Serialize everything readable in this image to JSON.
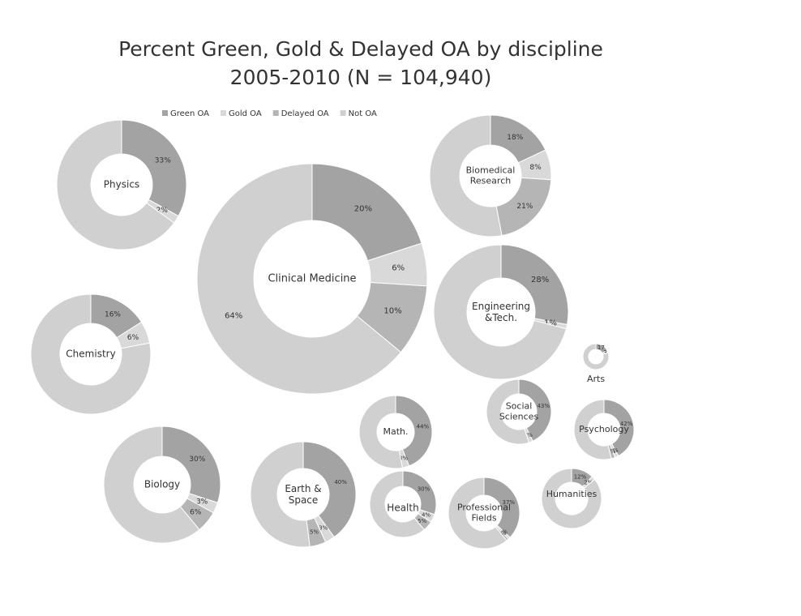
{
  "chart_data": {
    "type": "donut",
    "title": "Percent Green, Gold & Delayed OA by discipline",
    "subtitle": "2005-2010 (N = 104,940)",
    "categories": [
      "Green OA",
      "Gold OA",
      "Delayed OA",
      "Not OA"
    ],
    "colors": [
      "#a3a3a3",
      "#d9d9d9",
      "#b5b5b5",
      "#d0d0d0"
    ],
    "legend": "top",
    "charts": [
      {
        "name": "Physics",
        "values": [
          33,
          2,
          0,
          65
        ],
        "value_labels": [
          "33%",
          "2%",
          null,
          null
        ]
      },
      {
        "name": "Biomedical\nResearch",
        "values": [
          18,
          8,
          21,
          53
        ],
        "value_labels": [
          "18%",
          "8%",
          "21%",
          null
        ]
      },
      {
        "name": "Clinical Medicine",
        "values": [
          20,
          6,
          10,
          64
        ],
        "value_labels": [
          "20%",
          "6%",
          "10%",
          "64%"
        ]
      },
      {
        "name": "Engineering\n&Tech.",
        "values": [
          28,
          1,
          0,
          71
        ],
        "value_labels": [
          "28%",
          "1%",
          null,
          null
        ]
      },
      {
        "name": "Chemistry",
        "values": [
          16,
          6,
          0,
          78
        ],
        "value_labels": [
          "16%",
          "6%",
          null,
          null
        ]
      },
      {
        "name": "Arts",
        "values": [
          17,
          3,
          0,
          80
        ],
        "value_labels": [
          "17",
          "3",
          null,
          null
        ]
      },
      {
        "name": "Social\nSciences",
        "values": [
          43,
          2,
          0,
          55
        ],
        "value_labels": [
          "43%",
          "2%",
          null,
          null
        ]
      },
      {
        "name": "Psychology",
        "values": [
          42,
          2,
          2,
          54
        ],
        "value_labels": [
          "42%",
          "2%",
          "2%",
          null
        ]
      },
      {
        "name": "Math.",
        "values": [
          44,
          3,
          0,
          53
        ],
        "value_labels": [
          "44%",
          "3%",
          null,
          null
        ]
      },
      {
        "name": "Biology",
        "values": [
          30,
          3,
          6,
          61
        ],
        "value_labels": [
          "30%",
          "3%",
          "6%",
          null
        ]
      },
      {
        "name": "Earth &\nSpace",
        "values": [
          40,
          3,
          5,
          52
        ],
        "value_labels": [
          "40%",
          "3%",
          "5%",
          null
        ]
      },
      {
        "name": "Health",
        "values": [
          30,
          4,
          5,
          61
        ],
        "value_labels": [
          "30%",
          "4%",
          "5%",
          null
        ]
      },
      {
        "name": "Professional\nFields",
        "values": [
          37,
          1,
          1,
          61
        ],
        "value_labels": [
          "37%",
          "1%",
          "1%",
          null
        ]
      },
      {
        "name": "Humanities",
        "values": [
          12,
          2,
          0,
          86
        ],
        "value_labels": [
          "12%",
          "2%",
          null,
          null
        ]
      }
    ]
  }
}
